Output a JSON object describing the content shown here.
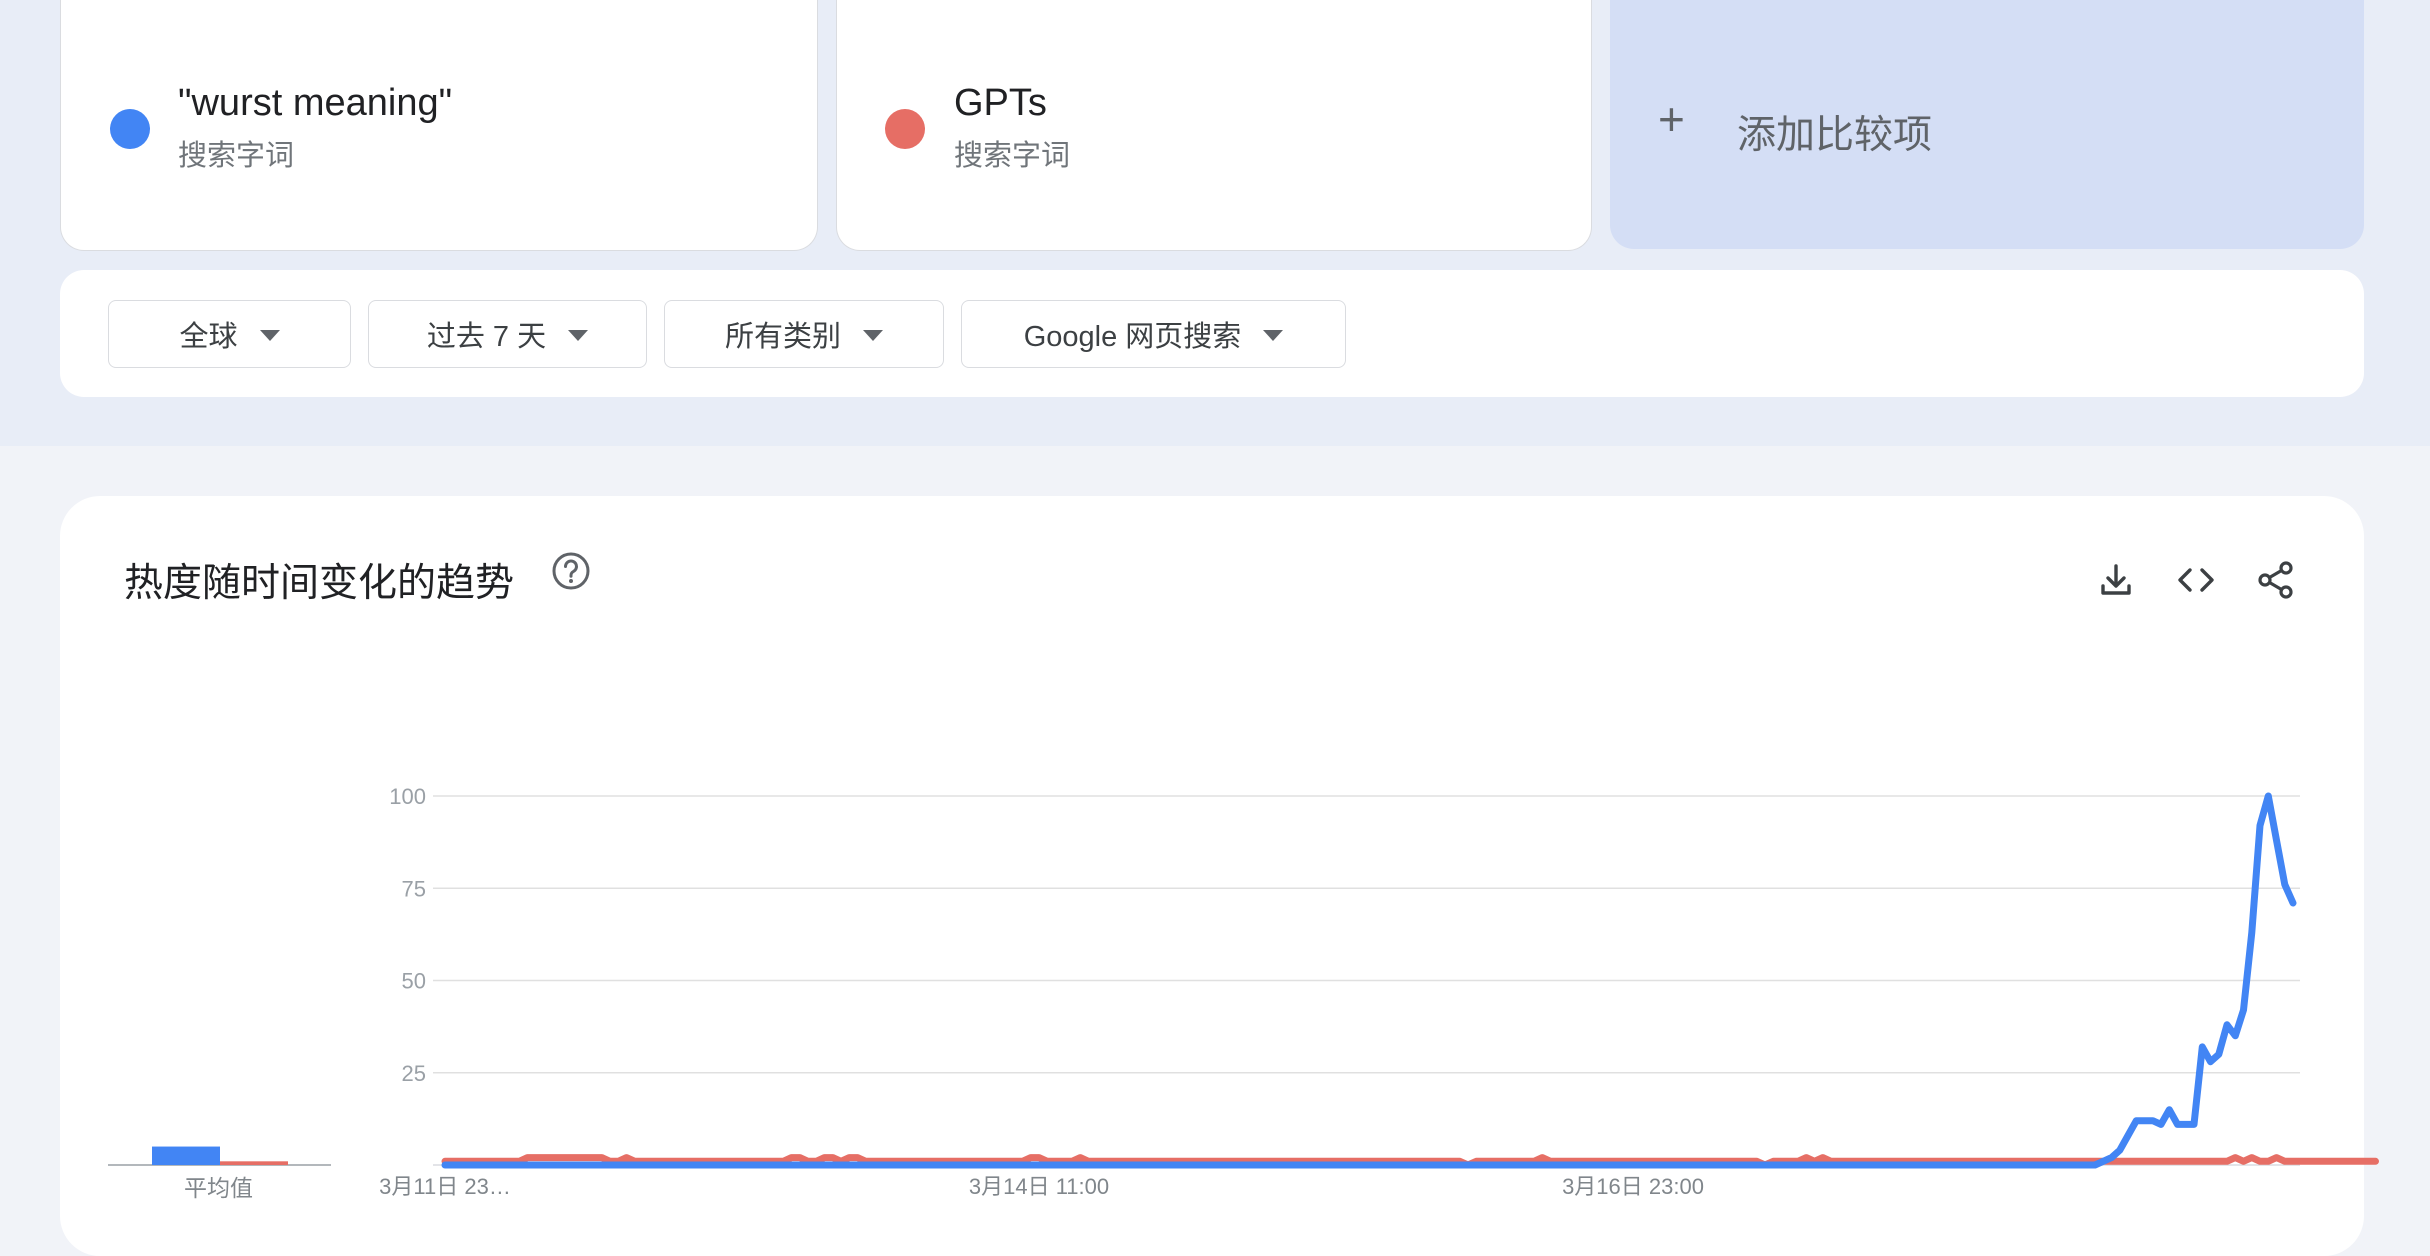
{
  "terms": [
    {
      "name": "\"wurst meaning\"",
      "sublabel": "搜索字词",
      "color": "#4285f4"
    },
    {
      "name": "GPTs",
      "sublabel": "搜索字词",
      "color": "#e66e65"
    }
  ],
  "add_compare": {
    "label": "添加比较项"
  },
  "filters": {
    "region": "全球",
    "time": "过去 7 天",
    "category": "所有类别",
    "search_type": "Google 网页搜索"
  },
  "chart_card": {
    "title": "热度随时间变化的趋势",
    "avg_label": "平均值"
  },
  "chart_data": {
    "type": "line",
    "title": "热度随时间变化的趋势",
    "xlabel": "",
    "ylabel": "",
    "ylim": [
      0,
      100
    ],
    "yticks": [
      25,
      50,
      75,
      100
    ],
    "x_tick_labels": [
      {
        "index": 0,
        "label": "3月11日 23…"
      },
      {
        "index": 72,
        "label": "3月14日 11:00"
      },
      {
        "index": 144,
        "label": "3月16日 23:00"
      }
    ],
    "averages": [
      5,
      1
    ],
    "series": [
      {
        "name": "\"wurst meaning\"",
        "color": "#4285f4",
        "values": [
          0,
          0,
          0,
          0,
          0,
          0,
          0,
          0,
          0,
          0,
          0,
          0,
          0,
          0,
          0,
          0,
          0,
          0,
          0,
          0,
          0,
          0,
          0,
          0,
          0,
          0,
          0,
          0,
          0,
          0,
          0,
          0,
          0,
          0,
          0,
          0,
          0,
          0,
          0,
          0,
          0,
          0,
          0,
          0,
          0,
          0,
          0,
          0,
          0,
          0,
          0,
          0,
          0,
          0,
          0,
          0,
          0,
          0,
          0,
          0,
          0,
          0,
          0,
          0,
          0,
          0,
          0,
          0,
          0,
          0,
          0,
          0,
          0,
          0,
          0,
          0,
          0,
          0,
          0,
          0,
          0,
          0,
          0,
          0,
          0,
          0,
          0,
          0,
          0,
          0,
          0,
          0,
          0,
          0,
          0,
          0,
          0,
          0,
          0,
          0,
          0,
          0,
          0,
          0,
          0,
          0,
          0,
          0,
          0,
          0,
          0,
          0,
          0,
          0,
          0,
          0,
          0,
          0,
          0,
          0,
          0,
          0,
          0,
          0,
          0,
          0,
          0,
          0,
          0,
          0,
          0,
          0,
          0,
          0,
          0,
          0,
          0,
          0,
          0,
          0,
          0,
          0,
          0,
          0,
          0,
          0,
          0,
          0,
          0,
          0,
          0,
          0,
          0,
          0,
          0,
          0,
          0,
          0,
          0,
          0,
          0,
          0,
          0,
          0,
          0,
          0,
          0,
          0,
          0,
          0,
          0,
          0,
          0,
          0,
          0,
          0,
          0,
          0,
          0,
          0,
          0,
          0,
          0,
          0,
          0,
          0,
          0,
          0,
          0,
          0,
          0,
          0,
          0,
          0,
          0,
          0,
          0,
          0,
          0,
          0,
          0,
          1,
          2,
          4,
          8,
          12,
          12,
          12,
          11,
          15,
          11,
          11,
          11,
          32,
          28,
          30,
          38,
          35,
          42,
          63,
          92,
          100,
          88,
          76,
          71
        ]
      },
      {
        "name": "GPTs",
        "color": "#e66e65",
        "values": [
          1,
          1,
          1,
          1,
          1,
          1,
          1,
          1,
          1,
          1,
          2,
          2,
          2,
          2,
          2,
          2,
          2,
          2,
          2,
          2,
          1,
          1,
          2,
          1,
          1,
          1,
          1,
          1,
          1,
          1,
          1,
          1,
          1,
          1,
          1,
          1,
          1,
          1,
          1,
          1,
          1,
          1,
          2,
          2,
          1,
          1,
          2,
          2,
          1,
          2,
          2,
          1,
          1,
          1,
          1,
          1,
          1,
          1,
          1,
          1,
          1,
          1,
          1,
          1,
          1,
          1,
          1,
          1,
          1,
          1,
          1,
          2,
          2,
          1,
          1,
          1,
          1,
          2,
          1,
          1,
          1,
          1,
          1,
          1,
          1,
          1,
          1,
          1,
          1,
          1,
          1,
          1,
          1,
          1,
          1,
          1,
          1,
          1,
          1,
          1,
          1,
          1,
          1,
          1,
          1,
          1,
          1,
          1,
          1,
          1,
          1,
          1,
          1,
          1,
          1,
          1,
          1,
          1,
          1,
          1,
          1,
          1,
          1,
          1,
          0,
          1,
          1,
          1,
          1,
          1,
          1,
          1,
          1,
          2,
          1,
          1,
          1,
          1,
          1,
          1,
          1,
          1,
          1,
          1,
          1,
          1,
          1,
          1,
          1,
          1,
          1,
          1,
          1,
          1,
          1,
          1,
          1,
          1,
          1,
          1,
          0,
          1,
          1,
          1,
          1,
          2,
          1,
          2,
          1,
          1,
          1,
          1,
          1,
          1,
          1,
          1,
          1,
          1,
          1,
          1,
          1,
          1,
          1,
          1,
          1,
          1,
          1,
          1,
          1,
          1,
          1,
          1,
          1,
          1,
          1,
          1,
          1,
          1,
          1,
          1,
          1,
          1,
          1,
          1,
          1,
          1,
          1,
          1,
          1,
          1,
          1,
          1,
          1,
          1,
          1,
          1,
          1,
          2,
          1,
          2,
          1,
          1,
          2,
          1,
          1,
          1,
          1,
          1,
          1,
          1,
          1,
          1,
          1,
          1,
          1
        ]
      }
    ]
  }
}
